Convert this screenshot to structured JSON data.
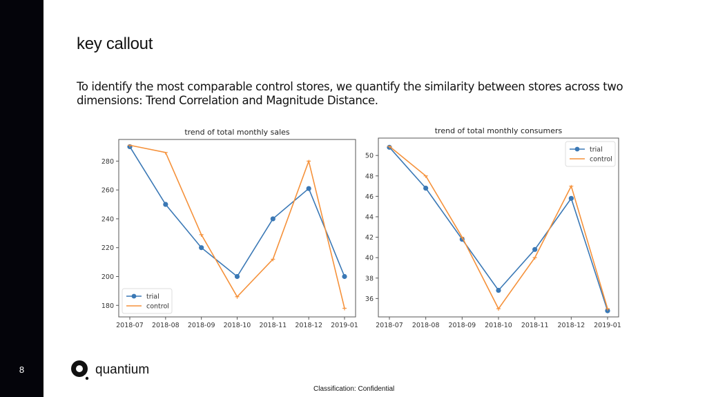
{
  "slide": {
    "page_number": "8",
    "title": "key callout",
    "body": "To identify the most comparable control stores, we quantify the similarity between stores across two dimensions: Trend Correlation and Magnitude Distance.",
    "logo_text": "quantium",
    "logo_icon": "quantium-q-logo-icon",
    "classification": "Classification: Confidential"
  },
  "colors": {
    "trial": "#3a78b5",
    "control": "#f5913a",
    "sidebar": "#04040a"
  },
  "chart_data": [
    {
      "type": "line",
      "title": "trend of total monthly sales",
      "xlabel": "",
      "ylabel": "",
      "categories": [
        "2018-07",
        "2018-08",
        "2018-09",
        "2018-10",
        "2018-11",
        "2018-12",
        "2019-01"
      ],
      "yticks": [
        180,
        200,
        220,
        240,
        260,
        280
      ],
      "ylim": [
        172,
        295
      ],
      "legend_position": "lower-left",
      "grid": false,
      "series": [
        {
          "name": "trial",
          "marker": "circle",
          "values": [
            290,
            250,
            220,
            200,
            240,
            261,
            200
          ]
        },
        {
          "name": "control",
          "marker": "tri",
          "values": [
            291,
            286,
            229,
            186,
            212,
            280,
            178
          ]
        }
      ]
    },
    {
      "type": "line",
      "title": "trend of total monthly consumers",
      "xlabel": "",
      "ylabel": "",
      "categories": [
        "2018-07",
        "2018-08",
        "2018-09",
        "2018-10",
        "2018-11",
        "2018-12",
        "2019-01"
      ],
      "yticks": [
        36,
        38,
        40,
        42,
        44,
        46,
        48,
        50
      ],
      "ylim": [
        34.2,
        51.7
      ],
      "legend_position": "upper-right",
      "grid": false,
      "series": [
        {
          "name": "trial",
          "marker": "circle",
          "values": [
            50.8,
            46.8,
            41.8,
            36.8,
            40.8,
            45.8,
            34.8
          ]
        },
        {
          "name": "control",
          "marker": "tri",
          "values": [
            50.9,
            48,
            42,
            35,
            40,
            47,
            35
          ]
        }
      ]
    }
  ]
}
